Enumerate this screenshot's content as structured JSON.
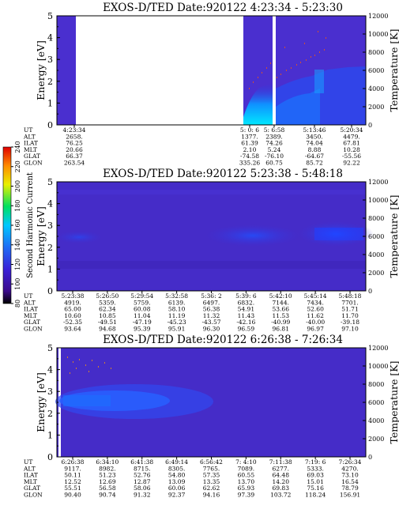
{
  "chart_data": [
    {
      "type": "heatmap",
      "title": "EXOS-D/TED   Date:920122  4:23:34 - 5:23:30",
      "ylabel": "Energy [eV]",
      "y2label": "Temperature [K]",
      "ylim": [
        0,
        5
      ],
      "yticks": [
        "0",
        "1",
        "2",
        "3",
        "4",
        "5"
      ],
      "y2lim": [
        0,
        12000
      ],
      "y2ticks": [
        "0",
        "2000",
        "4000",
        "6000",
        "8000",
        "10000",
        "12000"
      ],
      "table_labels": [
        "UT",
        "ALT",
        "ILAT",
        "MLT",
        "GLAT",
        "GLON"
      ],
      "table_columns": [
        {
          "values": [
            "4:23:34",
            "2658.",
            "76.25",
            "20.66",
            "66.37",
            "263.54"
          ]
        },
        {
          "values": [
            "5: 0: 6",
            "1377.",
            "61.39",
            "2.10",
            "-74.58",
            "335.26"
          ]
        },
        {
          "values": [
            "5: 6:58",
            "2389.",
            "74.26",
            "5.24",
            "-76.10",
            "60.75"
          ]
        },
        {
          "values": [
            "5:13:46",
            "3450.",
            "74.04",
            "8.88",
            "-64.67",
            "85.72"
          ]
        },
        {
          "values": [
            "5:20:34",
            "4479.",
            "67.81",
            "10.28",
            "-55.56",
            "92.22"
          ]
        }
      ],
      "data_segments": [
        {
          "from": "4:23:34",
          "to": "4:32:00"
        },
        {
          "from": "4:59:30",
          "to": "5:06:20"
        },
        {
          "from": "5:07:00",
          "to": "5:23:30"
        }
      ]
    },
    {
      "type": "heatmap",
      "title": "EXOS-D/TED   Date:920122  5:23:38 - 5:48:18",
      "ylabel": "Energy [eV]",
      "y2label": "Temperature [K]",
      "ylim": [
        0,
        5
      ],
      "yticks": [
        "0",
        "1",
        "2",
        "3",
        "4",
        "5"
      ],
      "y2lim": [
        0,
        12000
      ],
      "y2ticks": [
        "0",
        "2000",
        "4000",
        "6000",
        "8000",
        "10000",
        "12000"
      ],
      "table_labels": [
        "UT",
        "ALT",
        "ILAT",
        "MLT",
        "GLAT",
        "GLON"
      ],
      "table_columns": [
        {
          "values": [
            "5:23:38",
            "4919.",
            "65.00",
            "10.60",
            "-52.35",
            "93.64"
          ]
        },
        {
          "values": [
            "5:26:50",
            "5359.",
            "62.34",
            "10.85",
            "-49.51",
            "94.68"
          ]
        },
        {
          "values": [
            "5:29:54",
            "5759.",
            "60.08",
            "11.04",
            "-47.19",
            "95.39"
          ]
        },
        {
          "values": [
            "5:32:58",
            "6139.",
            "58.10",
            "11.19",
            "-45.23",
            "95.91"
          ]
        },
        {
          "values": [
            "5:36: 2",
            "6497.",
            "56.38",
            "11.32",
            "-43.57",
            "96.30"
          ]
        },
        {
          "values": [
            "5:39: 6",
            "6832.",
            "54.91",
            "11.43",
            "-42.16",
            "96.59"
          ]
        },
        {
          "values": [
            "5:42:10",
            "7144.",
            "53.66",
            "11.53",
            "-40.99",
            "96.81"
          ]
        },
        {
          "values": [
            "5:45:14",
            "7434.",
            "52.60",
            "11.62",
            "-40.00",
            "96.97"
          ]
        },
        {
          "values": [
            "5:48:18",
            "7701.",
            "51.71",
            "11.70",
            "-39.18",
            "97.10"
          ]
        }
      ]
    },
    {
      "type": "heatmap",
      "title": "EXOS-D/TED   Date:920122  6:26:38 - 7:26:34",
      "ylabel": "Energy [eV]",
      "y2label": "Temperature [K]",
      "ylim": [
        0,
        5
      ],
      "yticks": [
        "0",
        "1",
        "2",
        "3",
        "4",
        "5"
      ],
      "y2lim": [
        0,
        12000
      ],
      "y2ticks": [
        "0",
        "2000",
        "4000",
        "6000",
        "8000",
        "10000",
        "12000"
      ],
      "table_labels": [
        "UT",
        "ALT",
        "ILAT",
        "MLT",
        "GLAT",
        "GLON"
      ],
      "table_columns": [
        {
          "values": [
            "6:26:38",
            "9117.",
            "50.11",
            "12.52",
            "55.51",
            "90.40"
          ]
        },
        {
          "values": [
            "6:34:10",
            "8982.",
            "51.23",
            "12.69",
            "56.58",
            "90.74"
          ]
        },
        {
          "values": [
            "6:41:38",
            "8715.",
            "52.76",
            "12.87",
            "58.06",
            "91.32"
          ]
        },
        {
          "values": [
            "6:49:14",
            "8305.",
            "54.80",
            "13.09",
            "60.06",
            "92.37"
          ]
        },
        {
          "values": [
            "6:56:42",
            "7765.",
            "57.35",
            "13.35",
            "62.62",
            "94.16"
          ]
        },
        {
          "values": [
            "7: 4:10",
            "7089.",
            "60.55",
            "13.70",
            "65.93",
            "97.39"
          ]
        },
        {
          "values": [
            "7:11:38",
            "6277.",
            "64.48",
            "14.20",
            "69.83",
            "103.72"
          ]
        },
        {
          "values": [
            "7:19: 6",
            "5333.",
            "69.03",
            "15.01",
            "75.16",
            "118.24"
          ]
        },
        {
          "values": [
            "7:26:34",
            "4270.",
            "73.10",
            "16.54",
            "78.79",
            "156.91"
          ]
        }
      ]
    }
  ],
  "colorbar": {
    "label": "Second Harmonic Current",
    "min": 80,
    "max": 240,
    "ticks": [
      "80",
      "100",
      "120",
      "140",
      "160",
      "180",
      "200",
      "220",
      "240"
    ],
    "colors": [
      "#000000",
      "#3a0a8c",
      "#3a22d8",
      "#1f6cf5",
      "#00c8ff",
      "#00e060",
      "#e8f000",
      "#ff8c00",
      "#e00000"
    ]
  }
}
